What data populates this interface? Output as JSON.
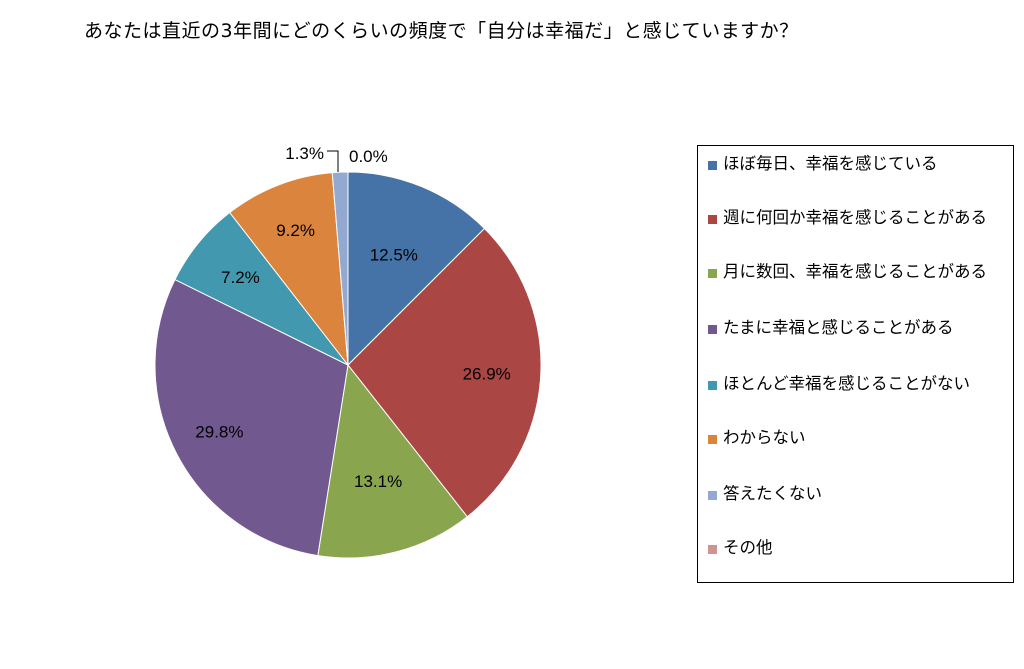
{
  "chart_data": {
    "type": "pie",
    "title": "あなたは直近の3年間にどのくらいの頻度で「自分は幸福だ」と感じていますか？",
    "categories": [
      "ほぼ毎日、幸福を感じている",
      "週に何回か幸福を感じることがある",
      "月に数回、幸福を感じることがある",
      "たまに幸福と感じることがある",
      "ほとんど幸福を感じることがない",
      "わからない",
      "答えたくない",
      "その他"
    ],
    "values": [
      12.5,
      26.9,
      13.1,
      29.8,
      7.2,
      9.2,
      1.3,
      0.0
    ],
    "value_labels": [
      "12.5%",
      "26.9%",
      "13.1%",
      "29.8%",
      "7.2%",
      "9.2%",
      "1.3%",
      "0.0%"
    ],
    "colors": [
      "#4572A7",
      "#AA4643",
      "#89A54E",
      "#71588F",
      "#4198AF",
      "#DB843D",
      "#93A9CF",
      "#D19392"
    ],
    "legend_position": "right",
    "start_angle": "top, clockwise"
  }
}
